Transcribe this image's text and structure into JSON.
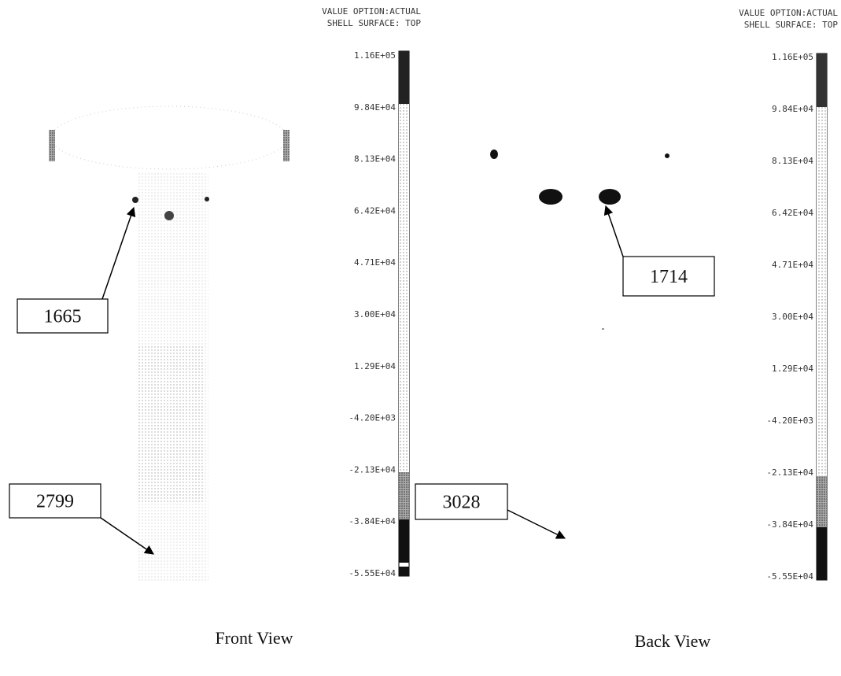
{
  "panels": [
    {
      "header": [
        "VALUE OPTION:ACTUAL",
        "SHELL SURFACE: TOP"
      ],
      "legend_labels": [
        "1.16E+05",
        "9.84E+04",
        "8.13E+04",
        "6.42E+04",
        "4.71E+04",
        "3.00E+04",
        "1.29E+04",
        "-4.20E+03",
        "-2.13E+04",
        "-3.84E+04",
        "-5.55E+04"
      ],
      "callouts": [
        "1665",
        "2799"
      ],
      "caption": "Front View"
    },
    {
      "header": [
        "VALUE OPTION:ACTUAL",
        "SHELL SURFACE: TOP"
      ],
      "legend_labels": [
        "1.16E+05",
        "9.84E+04",
        "8.13E+04",
        "6.42E+04",
        "4.71E+04",
        "3.00E+04",
        "1.29E+04",
        "-4.20E+03",
        "-2.13E+04",
        "-3.84E+04",
        "-5.55E+04"
      ],
      "callouts": [
        "1714",
        "3028"
      ],
      "caption": "Back View"
    }
  ]
}
